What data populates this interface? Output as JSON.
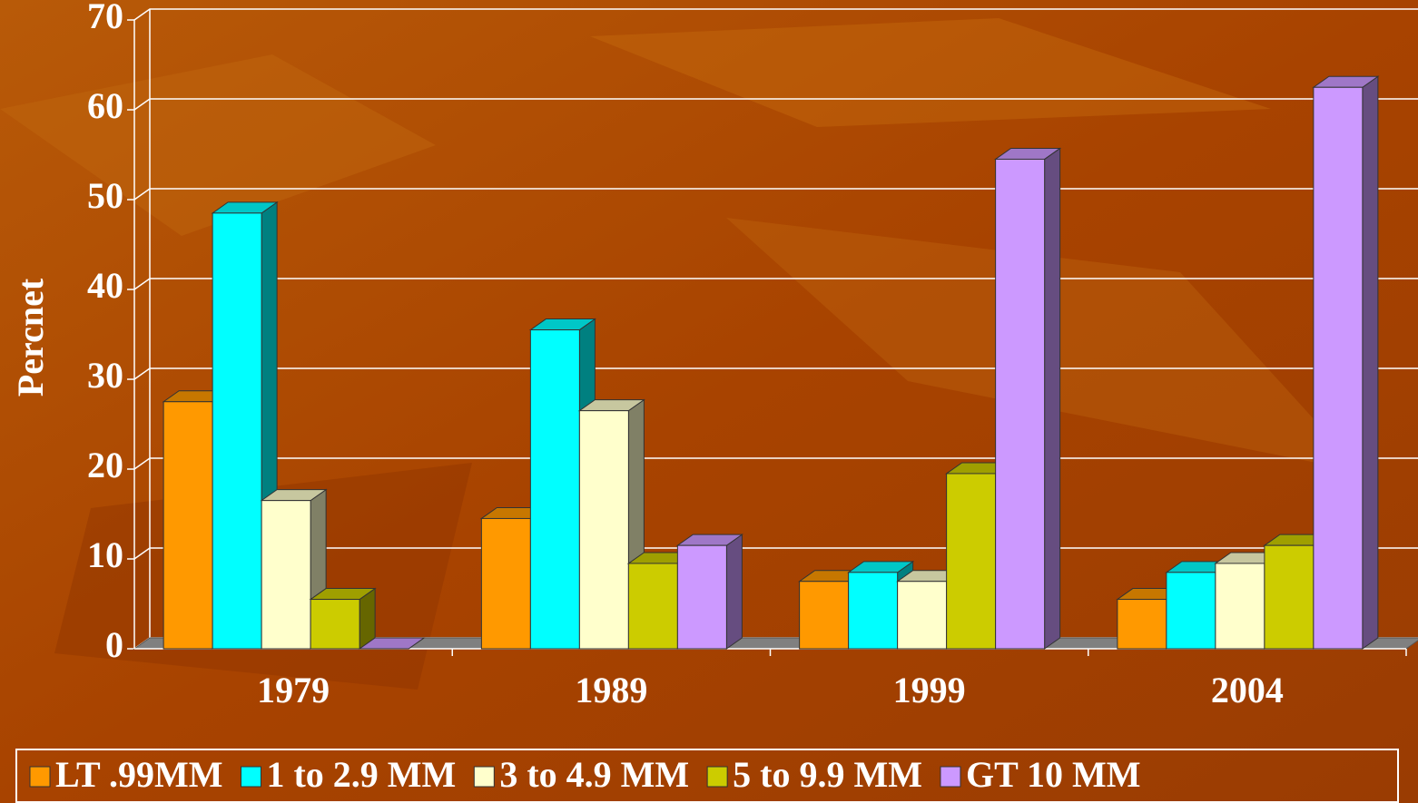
{
  "chart_data": {
    "type": "bar3d",
    "y_label": "Percnet",
    "categories": [
      "1979",
      "1989",
      "1999",
      "2004"
    ],
    "series": [
      {
        "name": "LT .99MM",
        "color": "#FF9900",
        "values": [
          27.5,
          14.5,
          7.5,
          5.5
        ]
      },
      {
        "name": "1 to 2.9 MM",
        "color": "#00FFFF",
        "values": [
          48.5,
          35.5,
          8.5,
          8.5
        ]
      },
      {
        "name": "3 to 4.9 MM",
        "color": "#FFFFCC",
        "values": [
          16.5,
          26.5,
          7.5,
          9.5
        ]
      },
      {
        "name": "5 to 9.9 MM",
        "color": "#CCCC00",
        "values": [
          5.5,
          9.5,
          19.5,
          11.5
        ]
      },
      {
        "name": "GT 10 MM",
        "color": "#CC99FF",
        "values": [
          0,
          11.5,
          54.5,
          62.5
        ]
      }
    ],
    "ylim": [
      0,
      70
    ],
    "yticks": [
      0,
      10,
      20,
      30,
      40,
      50,
      60,
      70
    ],
    "grid": true,
    "legend": "bottom"
  }
}
